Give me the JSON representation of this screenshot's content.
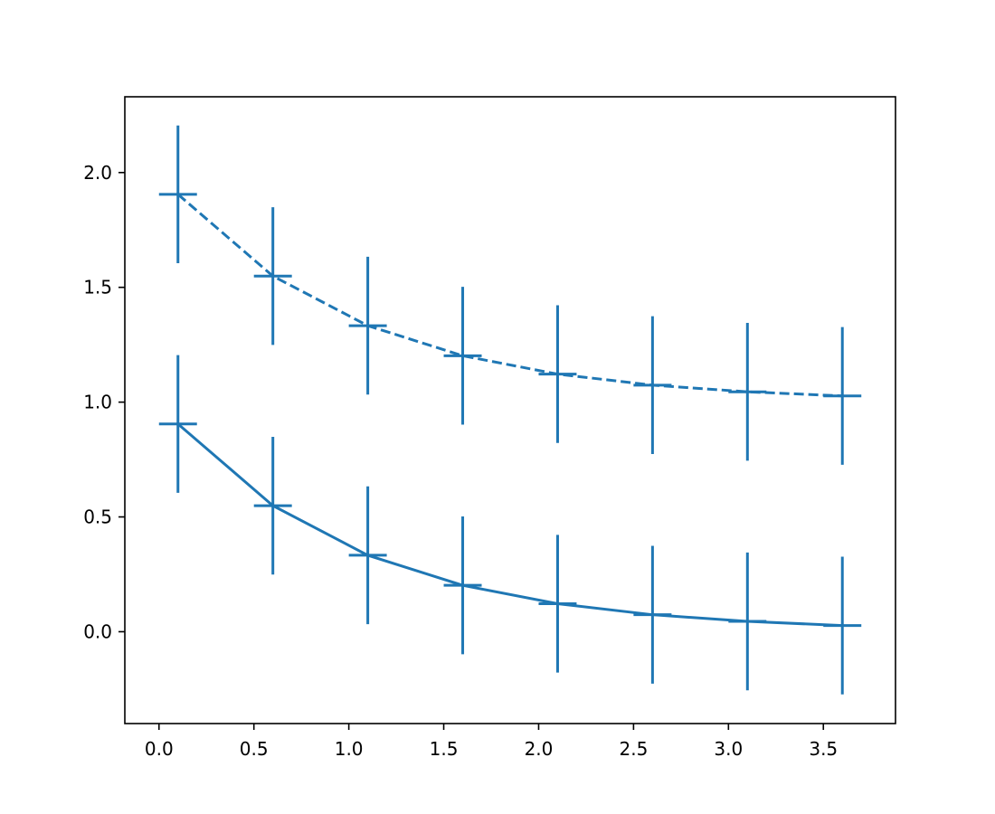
{
  "chart_data": {
    "type": "line",
    "title": "",
    "xlabel": "",
    "ylabel": "",
    "xlim": [
      -0.18,
      3.88
    ],
    "ylim": [
      -0.4,
      2.33
    ],
    "xticks": [
      0.0,
      0.5,
      1.0,
      1.5,
      2.0,
      2.5,
      3.0,
      3.5
    ],
    "xtick_labels": [
      "0.0",
      "0.5",
      "1.0",
      "1.5",
      "2.0",
      "2.5",
      "3.0",
      "3.5"
    ],
    "yticks": [
      0.0,
      0.5,
      1.0,
      1.5,
      2.0
    ],
    "ytick_labels": [
      "0.0",
      "0.5",
      "1.0",
      "1.5",
      "2.0"
    ],
    "grid": false,
    "legend": "none",
    "color": "#1f77b4",
    "x": [
      0.1,
      0.6,
      1.1,
      1.6,
      2.1,
      2.6,
      3.1,
      3.6
    ],
    "series": [
      {
        "linestyle": "solid",
        "y": [
          0.905,
          0.549,
          0.333,
          0.202,
          0.122,
          0.074,
          0.045,
          0.027
        ],
        "yerr": 0.3,
        "xerr": 0.1
      },
      {
        "linestyle": "dashed",
        "y": [
          1.905,
          1.549,
          1.333,
          1.202,
          1.122,
          1.074,
          1.045,
          1.027
        ],
        "yerr": 0.3,
        "xerr": 0.1
      }
    ]
  }
}
